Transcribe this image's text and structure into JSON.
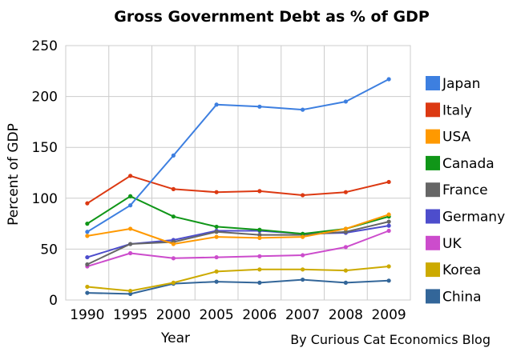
{
  "chart_data": {
    "type": "line",
    "title": "Gross Government Debt as % of GDP",
    "xlabel": "Year",
    "ylabel": "Percent of GDP",
    "credit": "By Curious Cat Economics Blog",
    "categories": [
      "1990",
      "1995",
      "2000",
      "2005",
      "2006",
      "2007",
      "2008",
      "2009"
    ],
    "ylim": [
      0,
      250
    ],
    "yticks": [
      0,
      50,
      100,
      150,
      200,
      250
    ],
    "grid": true,
    "legend_position": "right",
    "series": [
      {
        "name": "Japan",
        "color": "#3d7fe0",
        "values": [
          67,
          93,
          142,
          192,
          190,
          187,
          195,
          217
        ]
      },
      {
        "name": "Italy",
        "color": "#dc3912",
        "values": [
          95,
          122,
          109,
          106,
          107,
          103,
          106,
          116
        ]
      },
      {
        "name": "USA",
        "color": "#ff9900",
        "values": [
          63,
          70,
          55,
          62,
          61,
          62,
          70,
          84
        ]
      },
      {
        "name": "Canada",
        "color": "#109618",
        "values": [
          75,
          102,
          82,
          72,
          69,
          65,
          70,
          82
        ]
      },
      {
        "name": "France",
        "color": "#666666",
        "values": [
          35,
          55,
          57,
          67,
          64,
          64,
          67,
          77
        ]
      },
      {
        "name": "Germany",
        "color": "#4d4dcc",
        "values": [
          42,
          55,
          59,
          68,
          68,
          65,
          66,
          73
        ]
      },
      {
        "name": "UK",
        "color": "#cc4ccc",
        "values": [
          33,
          46,
          41,
          42,
          43,
          44,
          52,
          68
        ]
      },
      {
        "name": "Korea",
        "color": "#ccaa00",
        "values": [
          13,
          9,
          17,
          28,
          30,
          30,
          29,
          33
        ]
      },
      {
        "name": "China",
        "color": "#336699",
        "values": [
          7,
          6,
          16,
          18,
          17,
          20,
          17,
          19
        ]
      }
    ]
  }
}
